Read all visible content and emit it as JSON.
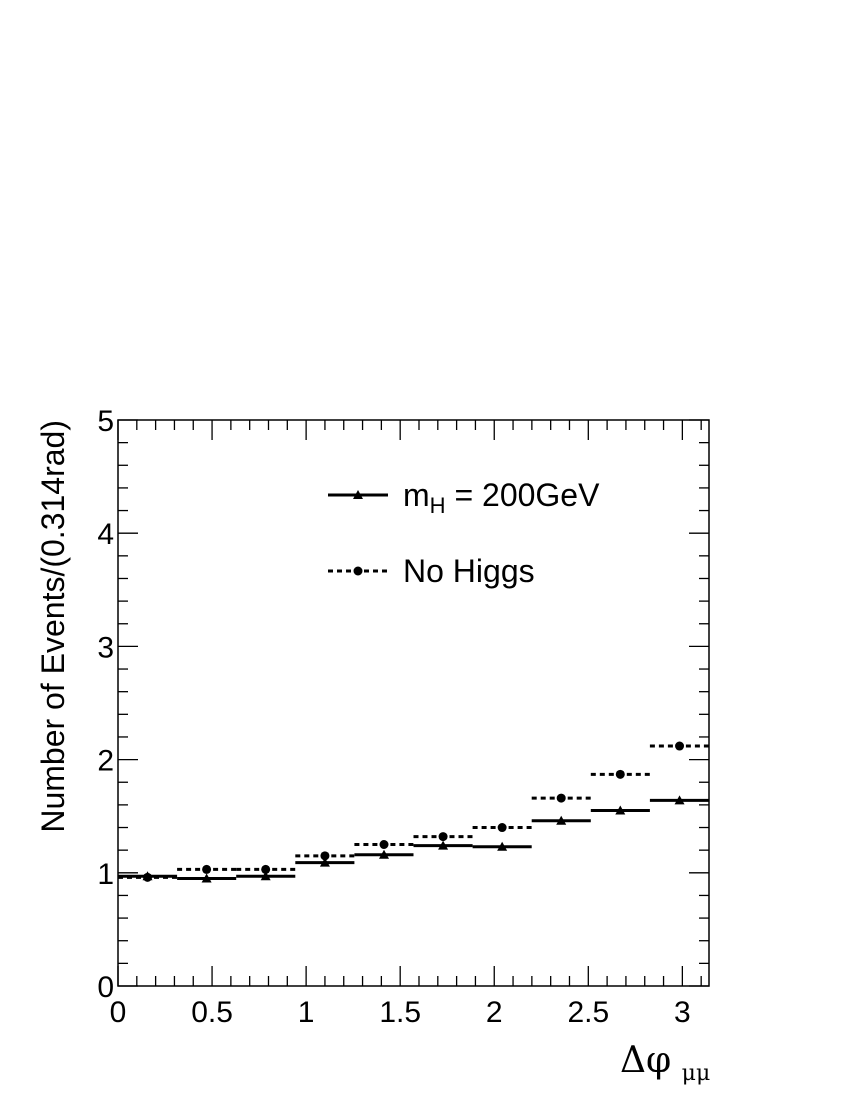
{
  "chart_data": {
    "type": "line",
    "drawstyle": "steps",
    "xlabel": "Δφ",
    "xlabel_subscript": "μμ",
    "ylabel": "Number of Events/(0.314rad)",
    "xlim": [
      0,
      3.14159
    ],
    "ylim": [
      0,
      5
    ],
    "xticks": [
      0,
      0.5,
      1,
      1.5,
      2,
      2.5,
      3
    ],
    "xtick_labels": [
      "0",
      "0.5",
      "1",
      "1.5",
      "2",
      "2.5",
      "3"
    ],
    "yticks": [
      0,
      1,
      2,
      3,
      4,
      5
    ],
    "ytick_labels": [
      "0",
      "1",
      "2",
      "3",
      "4",
      "5"
    ],
    "bin_edges": [
      0,
      0.31416,
      0.62832,
      0.94248,
      1.25664,
      1.5708,
      1.88496,
      2.19911,
      2.51327,
      2.82743,
      3.14159
    ],
    "bin_centers": [
      0.157,
      0.471,
      0.785,
      1.1,
      1.414,
      1.728,
      2.042,
      2.356,
      2.67,
      2.985
    ],
    "legend_position": "top-center",
    "grid": false,
    "series": [
      {
        "name_main": "m",
        "name_sub": "H",
        "name_rest": " = 200GeV",
        "values": [
          0.97,
          0.95,
          0.97,
          1.09,
          1.16,
          1.24,
          1.23,
          1.46,
          1.55,
          1.64
        ],
        "line_style": "solid",
        "marker": "triangle",
        "color": "#000000"
      },
      {
        "name": "No Higgs",
        "values": [
          0.96,
          1.03,
          1.03,
          1.15,
          1.25,
          1.32,
          1.4,
          1.66,
          1.87,
          2.12
        ],
        "line_style": "dotted",
        "marker": "circle",
        "color": "#000000"
      }
    ]
  }
}
